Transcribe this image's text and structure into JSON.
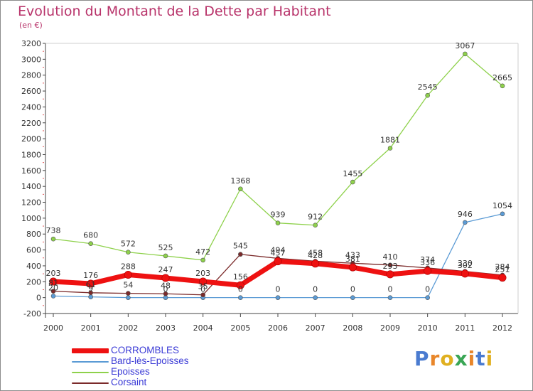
{
  "title": "Evolution du Montant de la Dette par Habitant",
  "subtitle": "(en €)",
  "logo": {
    "text": "Proxiti",
    "letter_colors": [
      "#4a7bd0",
      "#e8862a",
      "#e0b020",
      "#3aa655",
      "#e8862a",
      "#4a7bd0",
      "#e0b020"
    ]
  },
  "chart_data": {
    "type": "line",
    "x": [
      "2000",
      "2001",
      "2002",
      "2003",
      "2004",
      "2005",
      "2006",
      "2007",
      "2008",
      "2009",
      "2010",
      "2011",
      "2012"
    ],
    "ylim": [
      -200,
      3200
    ],
    "yticks": [
      -200,
      0,
      200,
      400,
      600,
      800,
      1000,
      1200,
      1400,
      1600,
      1800,
      2000,
      2200,
      2400,
      2600,
      2800,
      3000,
      3200
    ],
    "grid": false,
    "legend_position": "bottom-left",
    "series": [
      {
        "name": "CORROMBLES",
        "color": "#ee1111",
        "values": [
          203,
          176,
          288,
          247,
          203,
          156,
          457,
          428,
          381,
          293,
          336,
          302,
          251
        ],
        "labels": [
          "203",
          "176",
          "288",
          "247",
          "203",
          "156",
          "457",
          "428",
          "381",
          "293",
          "336",
          "302",
          "251"
        ]
      },
      {
        "name": "Bard-lès-Epoisses",
        "color": "#5b9bd5",
        "values": [
          20,
          9,
          0,
          0,
          0,
          0,
          0,
          0,
          0,
          0,
          0,
          946,
          1054
        ],
        "labels": [
          "20",
          "9",
          "",
          "0",
          "0",
          "0",
          "0",
          "0",
          "0",
          "0",
          "0",
          "946",
          "1054"
        ]
      },
      {
        "name": "Epoisses",
        "color": "#8ed14b",
        "values": [
          738,
          680,
          572,
          525,
          472,
          1368,
          939,
          912,
          1455,
          1881,
          2545,
          3067,
          2665
        ],
        "labels": [
          "738",
          "680",
          "572",
          "525",
          "472",
          "1368",
          "939",
          "912",
          "1455",
          "1881",
          "2545",
          "3067",
          "2665"
        ]
      },
      {
        "name": "Corsaint",
        "color": "#7b2a2a",
        "values": [
          81,
          61,
          54,
          48,
          35,
          545,
          494,
          458,
          433,
          410,
          374,
          330,
          284
        ],
        "labels": [
          "81",
          "61",
          "54",
          "48",
          "35",
          "545",
          "494",
          "458",
          "433",
          "410",
          "374",
          "330",
          "284"
        ]
      }
    ]
  }
}
